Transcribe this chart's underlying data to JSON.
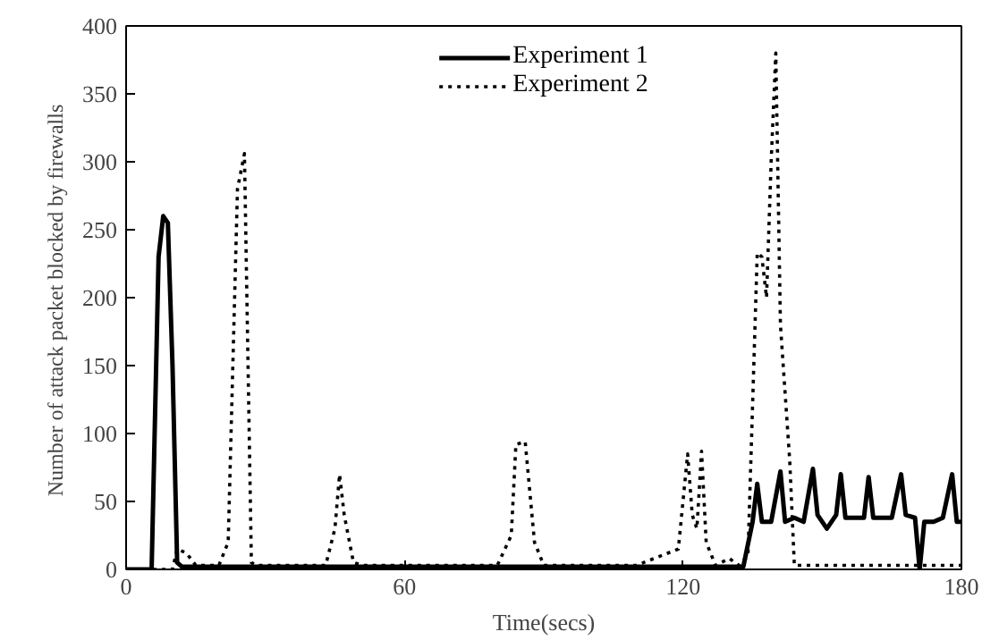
{
  "chart_data": {
    "type": "line",
    "xlabel": "Time(secs)",
    "ylabel": "Number of attack packet blocked  by firewalls",
    "xlim": [
      0,
      180
    ],
    "xticks": [
      0,
      60,
      120,
      180
    ],
    "ylim": [
      0,
      400
    ],
    "yticks": [
      0,
      50,
      100,
      150,
      200,
      250,
      300,
      350,
      400
    ],
    "grid": false,
    "legend": "top",
    "marker": "none",
    "series": [
      {
        "name": "Experiment 1",
        "color": "#000000",
        "line_style": "solid",
        "x": [
          0,
          5.5,
          7,
          8,
          9,
          10,
          11,
          12,
          20,
          40,
          60,
          80,
          100,
          120,
          133,
          135,
          136,
          137,
          139,
          141,
          142,
          144,
          146,
          148,
          149,
          151,
          153,
          154,
          155,
          157,
          159,
          160,
          161,
          163,
          165,
          167,
          168,
          170,
          171,
          172,
          174,
          176,
          178,
          179,
          180
        ],
        "values": [
          0,
          0,
          230,
          260,
          255,
          150,
          5,
          2,
          2,
          2,
          2,
          2,
          2,
          2,
          2,
          35,
          63,
          35,
          35,
          72,
          35,
          38,
          35,
          74,
          40,
          30,
          40,
          70,
          38,
          38,
          38,
          68,
          38,
          38,
          38,
          70,
          40,
          38,
          0,
          35,
          35,
          38,
          70,
          35,
          35
        ]
      },
      {
        "name": "Experiment 2",
        "color": "#000000",
        "line_style": "dotted",
        "x": [
          0,
          10,
          11,
          13,
          15,
          20,
          22,
          24,
          25.5,
          27,
          28,
          35,
          43,
          45,
          46,
          47,
          49,
          51,
          60,
          80,
          83,
          84,
          86,
          88,
          90,
          110,
          119,
          121,
          122,
          123,
          124,
          125,
          127,
          130,
          132,
          134,
          136,
          137,
          138,
          139,
          140,
          141,
          143,
          144,
          150,
          160,
          170,
          180
        ],
        "values": [
          0,
          0,
          15,
          12,
          3,
          3,
          20,
          280,
          306,
          5,
          3,
          3,
          3,
          30,
          70,
          40,
          5,
          3,
          3,
          3,
          25,
          92,
          94,
          20,
          3,
          3,
          15,
          85,
          40,
          30,
          87,
          20,
          3,
          8,
          3,
          10,
          233,
          230,
          200,
          300,
          380,
          180,
          80,
          3,
          3,
          3,
          3,
          3
        ]
      }
    ]
  }
}
